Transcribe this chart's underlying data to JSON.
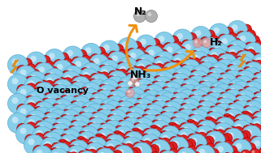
{
  "figsize": [
    3.21,
    1.89
  ],
  "dpi": 100,
  "bg_color": "#ffffff",
  "blue_atom_color": "#87CEEB",
  "blue_atom_edge": "#5AACCF",
  "red_atom_color": "#DD2020",
  "red_atom_edge": "#AA0000",
  "pink_atom_color": "#E8AAAA",
  "pink_atom_edge": "#C07070",
  "grey_atom_color": "#B0B0B0",
  "grey_atom_edge": "#808080",
  "rose_atom_color": "#DDA0A0",
  "rose_atom_edge": "#BB8080",
  "nh_atom_color": "#E8D0D0",
  "nh_atom_edge": "#C0A0A0",
  "side_color": "#7ab8cc",
  "side_edge": "#5a98ac",
  "arrow_color": "#F09010",
  "labels": {
    "N2": "N₂",
    "H2": "H₂",
    "NH3": "NH₃",
    "O_vacancy": "O vacancy"
  },
  "label_fontsize": 9,
  "label_fontsize_small": 8
}
